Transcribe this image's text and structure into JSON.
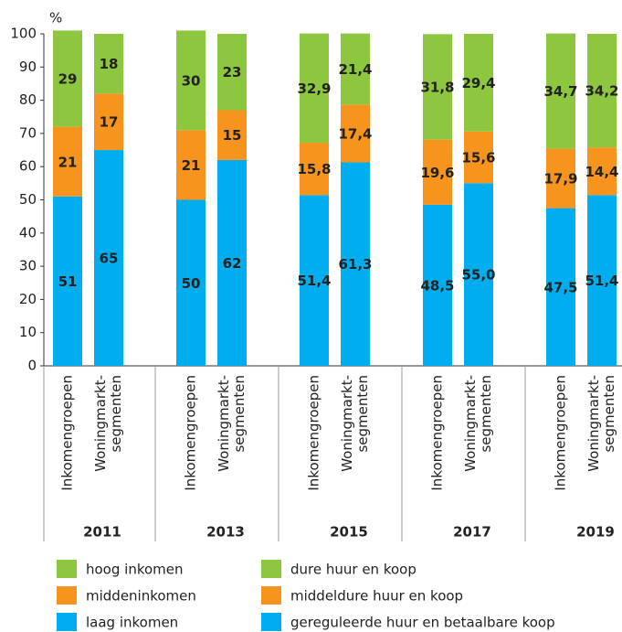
{
  "chart_data": {
    "type": "bar",
    "stacked": true,
    "y_unit": "%",
    "categories": [
      "2011",
      "2013",
      "2015",
      "2017",
      "2019"
    ],
    "ylim": [
      0,
      100
    ],
    "yticks": [
      0,
      10,
      20,
      30,
      40,
      50,
      60,
      70,
      80,
      90,
      100
    ],
    "groups": [
      {
        "label": [
          "Inkomengroepen"
        ],
        "series": [
          {
            "name": "laag inkomen",
            "color": "#00aeef",
            "values": [
              51,
              50,
              51.4,
              48.5,
              47.5
            ],
            "value_labels": [
              "51",
              "50",
              "51,4",
              "48,5",
              "47,5"
            ]
          },
          {
            "name": "middeninkomen",
            "color": "#f7941d",
            "values": [
              21,
              21,
              15.8,
              19.6,
              17.9
            ],
            "value_labels": [
              "21",
              "21",
              "15,8",
              "19,6",
              "17,9"
            ]
          },
          {
            "name": "hoog inkomen",
            "color": "#8dc63f",
            "values": [
              29,
              30,
              32.9,
              31.8,
              34.7
            ],
            "value_labels": [
              "29",
              "30",
              "32,9",
              "31,8",
              "34,7"
            ]
          }
        ]
      },
      {
        "label": [
          "Woningmarkt-",
          "segmenten"
        ],
        "series": [
          {
            "name": "gereguleerde huur en betaalbare koop",
            "color": "#00aeef",
            "values": [
              65,
              62,
              61.3,
              55.0,
              51.4
            ],
            "value_labels": [
              "65",
              "62",
              "61,3",
              "55,0",
              "51,4"
            ]
          },
          {
            "name": "middeldure huur en koop",
            "color": "#f7941d",
            "values": [
              17,
              15,
              17.4,
              15.6,
              14.4
            ],
            "value_labels": [
              "17",
              "15",
              "17,4",
              "15,6",
              "14,4"
            ]
          },
          {
            "name": "dure huur en koop",
            "color": "#8dc63f",
            "values": [
              18,
              23,
              21.4,
              29.4,
              34.2
            ],
            "value_labels": [
              "18",
              "23",
              "21,4",
              "29,4",
              "34,2"
            ]
          }
        ]
      }
    ]
  }
}
